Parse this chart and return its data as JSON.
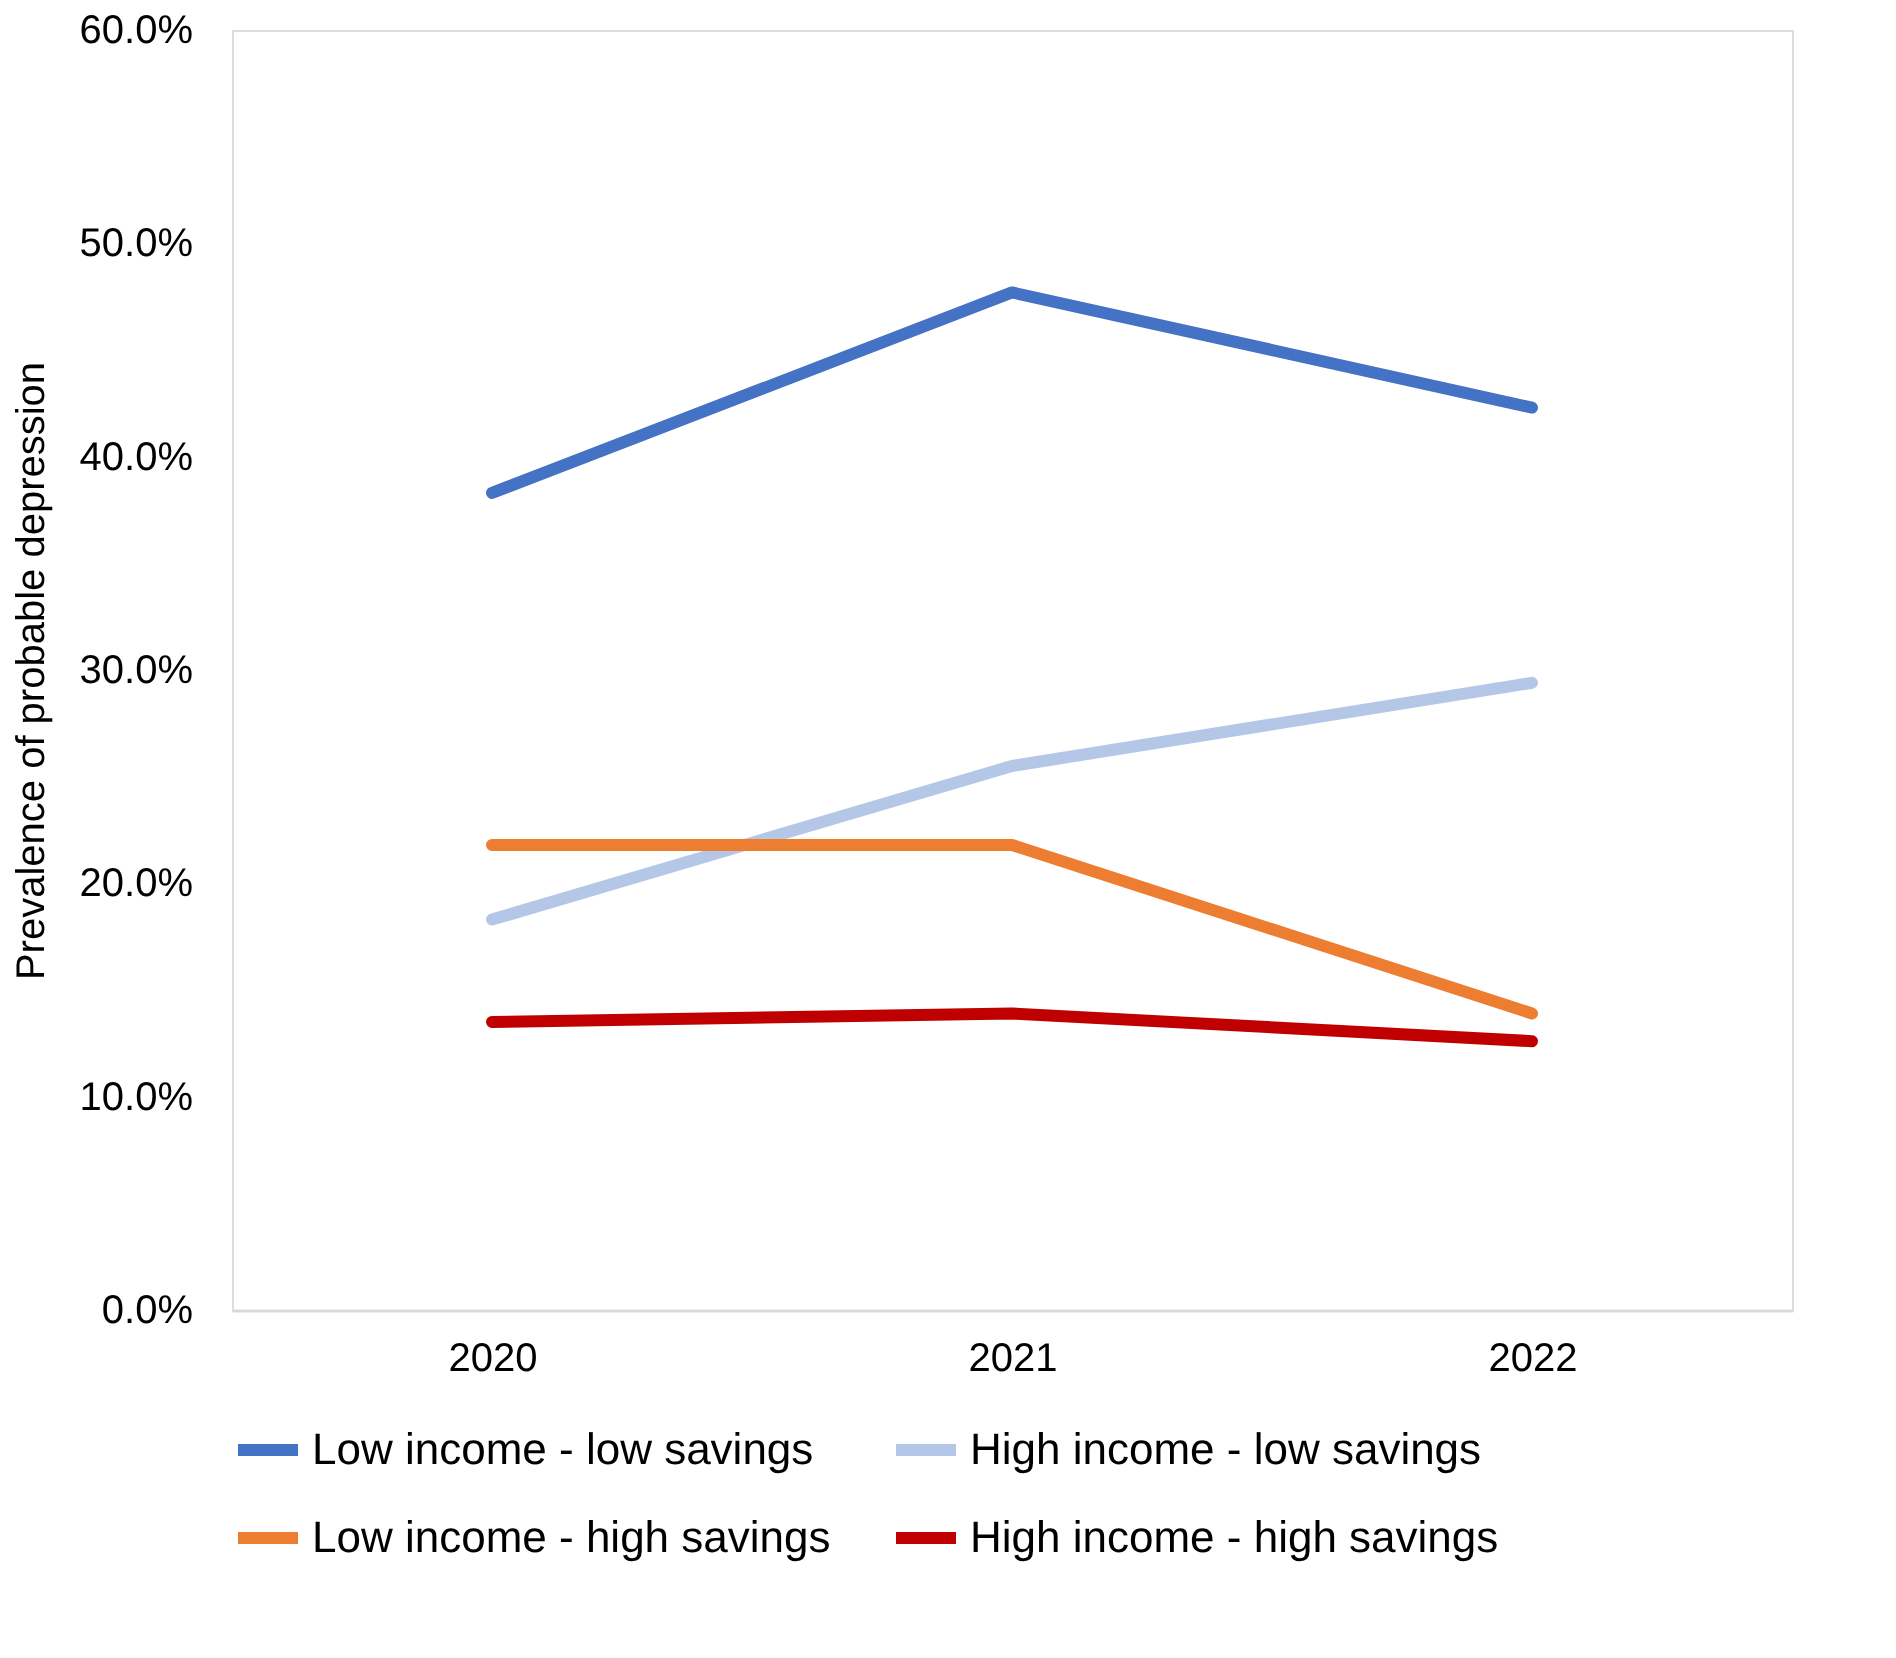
{
  "chart_data": {
    "type": "line",
    "ylabel": "Prevalence of probable depression",
    "categories": [
      "2020",
      "2021",
      "2022"
    ],
    "series": [
      {
        "name": "Low income - low savings",
        "color": "#4472c4",
        "values": [
          38.3,
          47.7,
          42.3
        ]
      },
      {
        "name": "High income - low savings",
        "color": "#b4c7e7",
        "values": [
          18.3,
          25.5,
          29.4
        ]
      },
      {
        "name": "Low income - high savings",
        "color": "#ed7d31",
        "values": [
          21.8,
          21.8,
          13.9
        ]
      },
      {
        "name": "High income - high savings",
        "color": "#c00000",
        "values": [
          13.5,
          13.9,
          12.6
        ]
      }
    ],
    "ylim": [
      0,
      60
    ],
    "yticks": [
      {
        "value": 0,
        "label": "0.0%"
      },
      {
        "value": 10,
        "label": "10.0%"
      },
      {
        "value": 20,
        "label": "20.0%"
      },
      {
        "value": 30,
        "label": "30.0%"
      },
      {
        "value": 40,
        "label": "40.0%"
      },
      {
        "value": 50,
        "label": "50.0%"
      },
      {
        "value": 60,
        "label": "60.0%"
      }
    ],
    "grid": false,
    "legend": "bottom"
  }
}
